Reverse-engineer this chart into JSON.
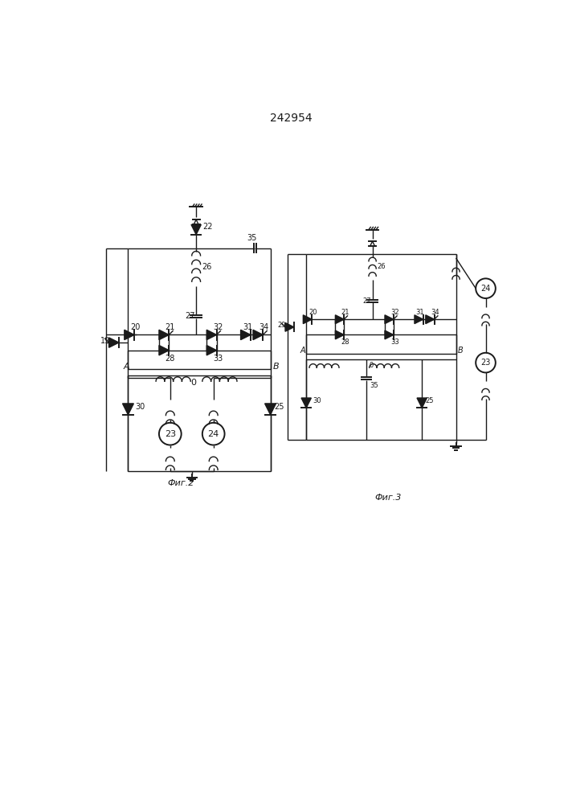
{
  "title": "242954",
  "fig2_label": "Фиг.2",
  "fig3_label": "Фиг.3",
  "bg_color": "#ffffff",
  "line_color": "#1a1a1a",
  "title_fontsize": 10,
  "label_fontsize": 8
}
